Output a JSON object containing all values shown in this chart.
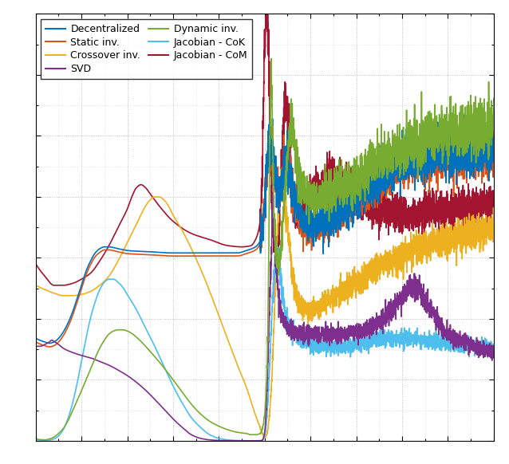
{
  "legend_entries": [
    {
      "label": "Decentralized",
      "color": "#0072BD"
    },
    {
      "label": "Static inv.",
      "color": "#D95319"
    },
    {
      "label": "Crossover inv.",
      "color": "#EDB120"
    },
    {
      "label": "SVD",
      "color": "#7E2F8E"
    },
    {
      "label": "Dynamic inv.",
      "color": "#77AC30"
    },
    {
      "label": "Jacobian - CoK",
      "color": "#4DBEEE"
    },
    {
      "label": "Jacobian - CoM",
      "color": "#A2142F"
    }
  ],
  "background_color": "#ffffff",
  "figsize": [
    6.38,
    5.82
  ],
  "dpi": 100,
  "xlim": [
    0,
    1000
  ],
  "ylim": [
    0,
    700
  ],
  "curves": {
    "Jacobian - CoM": [
      [
        0,
        290
      ],
      [
        20,
        270
      ],
      [
        40,
        255
      ],
      [
        60,
        255
      ],
      [
        80,
        258
      ],
      [
        100,
        265
      ],
      [
        120,
        275
      ],
      [
        140,
        295
      ],
      [
        160,
        320
      ],
      [
        180,
        350
      ],
      [
        200,
        380
      ],
      [
        210,
        400
      ],
      [
        220,
        415
      ],
      [
        230,
        420
      ],
      [
        240,
        415
      ],
      [
        250,
        405
      ],
      [
        270,
        385
      ],
      [
        300,
        360
      ],
      [
        340,
        340
      ],
      [
        380,
        330
      ],
      [
        420,
        320
      ],
      [
        450,
        318
      ],
      [
        470,
        320
      ],
      [
        480,
        330
      ],
      [
        490,
        360
      ],
      [
        495,
        450
      ],
      [
        500,
        650
      ],
      [
        505,
        700
      ],
      [
        510,
        580
      ],
      [
        515,
        420
      ],
      [
        520,
        330
      ],
      [
        525,
        310
      ],
      [
        530,
        340
      ],
      [
        535,
        420
      ],
      [
        540,
        500
      ],
      [
        545,
        560
      ],
      [
        550,
        540
      ],
      [
        555,
        480
      ],
      [
        560,
        420
      ],
      [
        565,
        380
      ],
      [
        570,
        370
      ],
      [
        580,
        380
      ],
      [
        600,
        400
      ],
      [
        620,
        420
      ],
      [
        650,
        430
      ],
      [
        680,
        420
      ],
      [
        700,
        400
      ],
      [
        750,
        380
      ],
      [
        800,
        370
      ],
      [
        850,
        375
      ],
      [
        900,
        380
      ],
      [
        950,
        385
      ],
      [
        1000,
        390
      ]
    ],
    "Crossover inv.": [
      [
        0,
        255
      ],
      [
        20,
        248
      ],
      [
        40,
        242
      ],
      [
        60,
        238
      ],
      [
        80,
        238
      ],
      [
        100,
        240
      ],
      [
        120,
        245
      ],
      [
        140,
        255
      ],
      [
        160,
        270
      ],
      [
        180,
        295
      ],
      [
        200,
        325
      ],
      [
        220,
        355
      ],
      [
        240,
        385
      ],
      [
        250,
        395
      ],
      [
        260,
        400
      ],
      [
        270,
        400
      ],
      [
        280,
        395
      ],
      [
        290,
        385
      ],
      [
        300,
        370
      ],
      [
        320,
        345
      ],
      [
        340,
        315
      ],
      [
        360,
        282
      ],
      [
        380,
        245
      ],
      [
        400,
        205
      ],
      [
        420,
        165
      ],
      [
        440,
        125
      ],
      [
        460,
        88
      ],
      [
        470,
        65
      ],
      [
        480,
        42
      ],
      [
        490,
        22
      ],
      [
        495,
        12
      ],
      [
        500,
        5
      ],
      [
        505,
        12
      ],
      [
        510,
        40
      ],
      [
        515,
        95
      ],
      [
        520,
        185
      ],
      [
        525,
        290
      ],
      [
        530,
        380
      ],
      [
        535,
        420
      ],
      [
        540,
        420
      ],
      [
        545,
        390
      ],
      [
        550,
        350
      ],
      [
        555,
        310
      ],
      [
        560,
        275
      ],
      [
        570,
        240
      ],
      [
        580,
        220
      ],
      [
        600,
        215
      ],
      [
        620,
        220
      ],
      [
        650,
        235
      ],
      [
        700,
        260
      ],
      [
        750,
        285
      ],
      [
        800,
        305
      ],
      [
        850,
        320
      ],
      [
        900,
        330
      ],
      [
        950,
        340
      ],
      [
        1000,
        350
      ]
    ],
    "Decentralized": [
      [
        0,
        168
      ],
      [
        20,
        162
      ],
      [
        30,
        160
      ],
      [
        40,
        162
      ],
      [
        50,
        168
      ],
      [
        60,
        178
      ],
      [
        70,
        192
      ],
      [
        80,
        210
      ],
      [
        90,
        232
      ],
      [
        100,
        255
      ],
      [
        110,
        278
      ],
      [
        120,
        295
      ],
      [
        130,
        308
      ],
      [
        140,
        315
      ],
      [
        150,
        318
      ],
      [
        160,
        318
      ],
      [
        180,
        315
      ],
      [
        200,
        312
      ],
      [
        250,
        310
      ],
      [
        300,
        308
      ],
      [
        350,
        308
      ],
      [
        400,
        308
      ],
      [
        440,
        308
      ],
      [
        460,
        312
      ],
      [
        480,
        318
      ],
      [
        490,
        328
      ],
      [
        495,
        350
      ],
      [
        500,
        395
      ],
      [
        505,
        450
      ],
      [
        510,
        490
      ],
      [
        515,
        480
      ],
      [
        520,
        455
      ],
      [
        525,
        430
      ],
      [
        530,
        415
      ],
      [
        535,
        420
      ],
      [
        540,
        440
      ],
      [
        545,
        460
      ],
      [
        550,
        460
      ],
      [
        555,
        440
      ],
      [
        560,
        415
      ],
      [
        570,
        385
      ],
      [
        580,
        365
      ],
      [
        600,
        355
      ],
      [
        650,
        368
      ],
      [
        700,
        400
      ],
      [
        750,
        430
      ],
      [
        800,
        455
      ],
      [
        850,
        465
      ],
      [
        900,
        470
      ],
      [
        950,
        472
      ],
      [
        1000,
        475
      ]
    ],
    "Static inv.": [
      [
        0,
        162
      ],
      [
        20,
        156
      ],
      [
        30,
        154
      ],
      [
        40,
        156
      ],
      [
        50,
        162
      ],
      [
        60,
        172
      ],
      [
        70,
        186
      ],
      [
        80,
        204
      ],
      [
        90,
        226
      ],
      [
        100,
        249
      ],
      [
        110,
        272
      ],
      [
        120,
        289
      ],
      [
        130,
        302
      ],
      [
        140,
        309
      ],
      [
        150,
        313
      ],
      [
        160,
        313
      ],
      [
        180,
        310
      ],
      [
        200,
        307
      ],
      [
        250,
        305
      ],
      [
        300,
        303
      ],
      [
        350,
        303
      ],
      [
        400,
        303
      ],
      [
        440,
        303
      ],
      [
        460,
        307
      ],
      [
        480,
        313
      ],
      [
        490,
        323
      ],
      [
        495,
        345
      ],
      [
        500,
        390
      ],
      [
        505,
        445
      ],
      [
        510,
        484
      ],
      [
        515,
        474
      ],
      [
        520,
        449
      ],
      [
        525,
        424
      ],
      [
        530,
        409
      ],
      [
        535,
        415
      ],
      [
        540,
        435
      ],
      [
        545,
        454
      ],
      [
        550,
        454
      ],
      [
        555,
        434
      ],
      [
        560,
        409
      ],
      [
        570,
        379
      ],
      [
        580,
        359
      ],
      [
        600,
        350
      ],
      [
        650,
        363
      ],
      [
        700,
        395
      ],
      [
        750,
        425
      ],
      [
        800,
        450
      ],
      [
        850,
        460
      ],
      [
        900,
        465
      ],
      [
        950,
        467
      ],
      [
        1000,
        470
      ]
    ],
    "Jacobian - CoK": [
      [
        0,
        2
      ],
      [
        10,
        1
      ],
      [
        20,
        0.5
      ],
      [
        30,
        1
      ],
      [
        40,
        3
      ],
      [
        50,
        8
      ],
      [
        60,
        18
      ],
      [
        70,
        35
      ],
      [
        80,
        60
      ],
      [
        90,
        92
      ],
      [
        100,
        130
      ],
      [
        110,
        168
      ],
      [
        120,
        202
      ],
      [
        130,
        228
      ],
      [
        140,
        248
      ],
      [
        150,
        260
      ],
      [
        160,
        265
      ],
      [
        170,
        265
      ],
      [
        180,
        260
      ],
      [
        190,
        252
      ],
      [
        200,
        240
      ],
      [
        220,
        215
      ],
      [
        240,
        185
      ],
      [
        260,
        155
      ],
      [
        280,
        122
      ],
      [
        300,
        90
      ],
      [
        320,
        62
      ],
      [
        340,
        38
      ],
      [
        360,
        22
      ],
      [
        380,
        10
      ],
      [
        400,
        4
      ],
      [
        420,
        1.5
      ],
      [
        440,
        0.5
      ],
      [
        460,
        0.2
      ],
      [
        480,
        0.1
      ],
      [
        490,
        0.2
      ],
      [
        495,
        1
      ],
      [
        500,
        8
      ],
      [
        505,
        40
      ],
      [
        510,
        110
      ],
      [
        515,
        200
      ],
      [
        520,
        270
      ],
      [
        525,
        300
      ],
      [
        530,
        295
      ],
      [
        535,
        268
      ],
      [
        540,
        235
      ],
      [
        545,
        210
      ],
      [
        550,
        195
      ],
      [
        560,
        180
      ],
      [
        570,
        170
      ],
      [
        580,
        165
      ],
      [
        600,
        158
      ],
      [
        650,
        155
      ],
      [
        700,
        158
      ],
      [
        750,
        165
      ],
      [
        800,
        168
      ],
      [
        850,
        165
      ],
      [
        900,
        160
      ],
      [
        950,
        155
      ],
      [
        1000,
        152
      ]
    ],
    "SVD": [
      [
        0,
        155
      ],
      [
        10,
        155
      ],
      [
        20,
        158
      ],
      [
        30,
        162
      ],
      [
        35,
        165
      ],
      [
        40,
        163
      ],
      [
        50,
        158
      ],
      [
        60,
        152
      ],
      [
        70,
        148
      ],
      [
        80,
        145
      ],
      [
        100,
        140
      ],
      [
        120,
        136
      ],
      [
        140,
        130
      ],
      [
        160,
        124
      ],
      [
        180,
        116
      ],
      [
        200,
        107
      ],
      [
        220,
        96
      ],
      [
        240,
        83
      ],
      [
        260,
        68
      ],
      [
        280,
        52
      ],
      [
        300,
        36
      ],
      [
        320,
        22
      ],
      [
        340,
        10
      ],
      [
        360,
        4
      ],
      [
        380,
        1.5
      ],
      [
        400,
        0.5
      ],
      [
        430,
        0.1
      ],
      [
        460,
        0.05
      ],
      [
        490,
        0.1
      ],
      [
        495,
        1
      ],
      [
        500,
        15
      ],
      [
        505,
        80
      ],
      [
        510,
        200
      ],
      [
        515,
        320
      ],
      [
        518,
        380
      ],
      [
        520,
        360
      ],
      [
        525,
        295
      ],
      [
        530,
        240
      ],
      [
        540,
        200
      ],
      [
        550,
        185
      ],
      [
        570,
        178
      ],
      [
        600,
        175
      ],
      [
        650,
        175
      ],
      [
        700,
        178
      ],
      [
        750,
        195
      ],
      [
        800,
        235
      ],
      [
        820,
        255
      ],
      [
        840,
        245
      ],
      [
        860,
        220
      ],
      [
        880,
        195
      ],
      [
        900,
        175
      ],
      [
        950,
        158
      ],
      [
        1000,
        145
      ]
    ],
    "Dynamic inv.": [
      [
        0,
        3
      ],
      [
        10,
        2
      ],
      [
        20,
        1.5
      ],
      [
        30,
        3
      ],
      [
        40,
        6
      ],
      [
        50,
        12
      ],
      [
        60,
        20
      ],
      [
        70,
        32
      ],
      [
        80,
        48
      ],
      [
        100,
        82
      ],
      [
        120,
        118
      ],
      [
        140,
        152
      ],
      [
        150,
        165
      ],
      [
        160,
        175
      ],
      [
        170,
        180
      ],
      [
        180,
        182
      ],
      [
        190,
        182
      ],
      [
        200,
        180
      ],
      [
        210,
        176
      ],
      [
        220,
        170
      ],
      [
        230,
        163
      ],
      [
        240,
        155
      ],
      [
        260,
        138
      ],
      [
        280,
        120
      ],
      [
        300,
        100
      ],
      [
        320,
        80
      ],
      [
        340,
        60
      ],
      [
        360,
        44
      ],
      [
        380,
        32
      ],
      [
        400,
        24
      ],
      [
        420,
        18
      ],
      [
        440,
        14
      ],
      [
        460,
        12
      ],
      [
        470,
        10
      ],
      [
        480,
        10
      ],
      [
        490,
        12
      ],
      [
        495,
        20
      ],
      [
        500,
        45
      ],
      [
        505,
        120
      ],
      [
        508,
        250
      ],
      [
        510,
        400
      ],
      [
        512,
        540
      ],
      [
        514,
        580
      ],
      [
        516,
        540
      ],
      [
        518,
        460
      ],
      [
        520,
        380
      ],
      [
        525,
        310
      ],
      [
        530,
        290
      ],
      [
        535,
        310
      ],
      [
        540,
        360
      ],
      [
        545,
        420
      ],
      [
        550,
        470
      ],
      [
        555,
        510
      ],
      [
        558,
        530
      ],
      [
        560,
        520
      ],
      [
        565,
        490
      ],
      [
        570,
        455
      ],
      [
        580,
        420
      ],
      [
        600,
        400
      ],
      [
        650,
        410
      ],
      [
        700,
        430
      ],
      [
        750,
        460
      ],
      [
        800,
        480
      ],
      [
        850,
        495
      ],
      [
        900,
        505
      ],
      [
        950,
        510
      ],
      [
        1000,
        515
      ]
    ]
  }
}
